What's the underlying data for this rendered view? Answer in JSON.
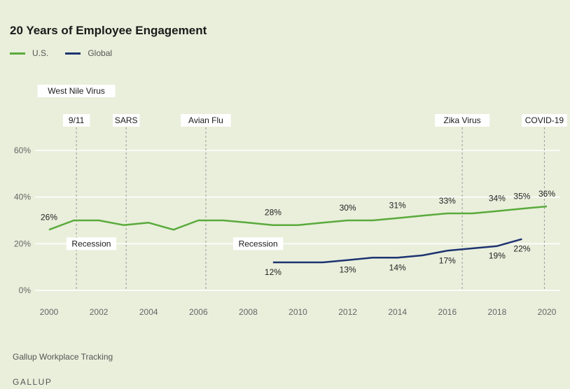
{
  "chart_data": {
    "type": "line",
    "title": "20 Years of Employee Engagement",
    "xlabel": "",
    "ylabel": "",
    "xlim": [
      2000,
      2020
    ],
    "ylim": [
      0,
      60
    ],
    "y_ticks": [
      0,
      20,
      40,
      60
    ],
    "y_tick_labels": [
      "0%",
      "20%",
      "40%",
      "60%"
    ],
    "x_ticks": [
      2000,
      2002,
      2004,
      2006,
      2008,
      2010,
      2012,
      2014,
      2016,
      2018,
      2020
    ],
    "x_tick_labels": [
      "2000",
      "2002",
      "2004",
      "2006",
      "2008",
      "2010",
      "2012",
      "2014",
      "2016",
      "2018",
      "2020"
    ],
    "grid": true,
    "legend_position": "top-left",
    "series": [
      {
        "name": "U.S.",
        "color": "#5aaa3c",
        "x": [
          2000,
          2001,
          2002,
          2003,
          2004,
          2005,
          2006,
          2007,
          2008,
          2009,
          2010,
          2011,
          2012,
          2013,
          2014,
          2015,
          2016,
          2017,
          2018,
          2019,
          2020
        ],
        "y": [
          26,
          30,
          30,
          28,
          29,
          26,
          30,
          30,
          29,
          28,
          28,
          29,
          30,
          30,
          31,
          32,
          33,
          33,
          34,
          35,
          36
        ],
        "labels": [
          {
            "x": 2000,
            "y": 26,
            "text": "26%"
          },
          {
            "x": 2009,
            "y": 28,
            "text": "28%"
          },
          {
            "x": 2012,
            "y": 30,
            "text": "30%"
          },
          {
            "x": 2014,
            "y": 31,
            "text": "31%"
          },
          {
            "x": 2016,
            "y": 33,
            "text": "33%"
          },
          {
            "x": 2018,
            "y": 34,
            "text": "34%"
          },
          {
            "x": 2019,
            "y": 35,
            "text": "35%"
          },
          {
            "x": 2020,
            "y": 36,
            "text": "36%"
          }
        ]
      },
      {
        "name": "Global",
        "color": "#1d3370",
        "x": [
          2009,
          2010,
          2011,
          2012,
          2013,
          2014,
          2015,
          2016,
          2017,
          2018,
          2019
        ],
        "y": [
          12,
          12,
          12,
          13,
          14,
          14,
          15,
          17,
          18,
          19,
          22
        ],
        "labels": [
          {
            "x": 2009,
            "y": 12,
            "text": "12%"
          },
          {
            "x": 2012,
            "y": 13,
            "text": "13%"
          },
          {
            "x": 2014,
            "y": 14,
            "text": "14%"
          },
          {
            "x": 2016,
            "y": 17,
            "text": "17%"
          },
          {
            "x": 2018,
            "y": 19,
            "text": "19%"
          },
          {
            "x": 2019,
            "y": 22,
            "text": "22%"
          }
        ]
      }
    ],
    "events": [
      {
        "text": "West Nile Virus",
        "x": 2001.1,
        "tier": 1
      },
      {
        "text": "9/11",
        "x": 2001.1,
        "tier": 2
      },
      {
        "text": "SARS",
        "x": 2003.1,
        "tier": 2
      },
      {
        "text": "Avian Flu",
        "x": 2006.3,
        "tier": 2
      },
      {
        "text": "Zika Virus",
        "x": 2016.6,
        "tier": 2
      },
      {
        "text": "COVID-19",
        "x": 2019.9,
        "tier": 2
      }
    ],
    "annotations": [
      {
        "text": "Recession",
        "x": 2001.7,
        "y": 20
      },
      {
        "text": "Recession",
        "x": 2008.4,
        "y": 20
      }
    ]
  },
  "source": "Gallup Workplace Tracking",
  "brand": "GALLUP"
}
